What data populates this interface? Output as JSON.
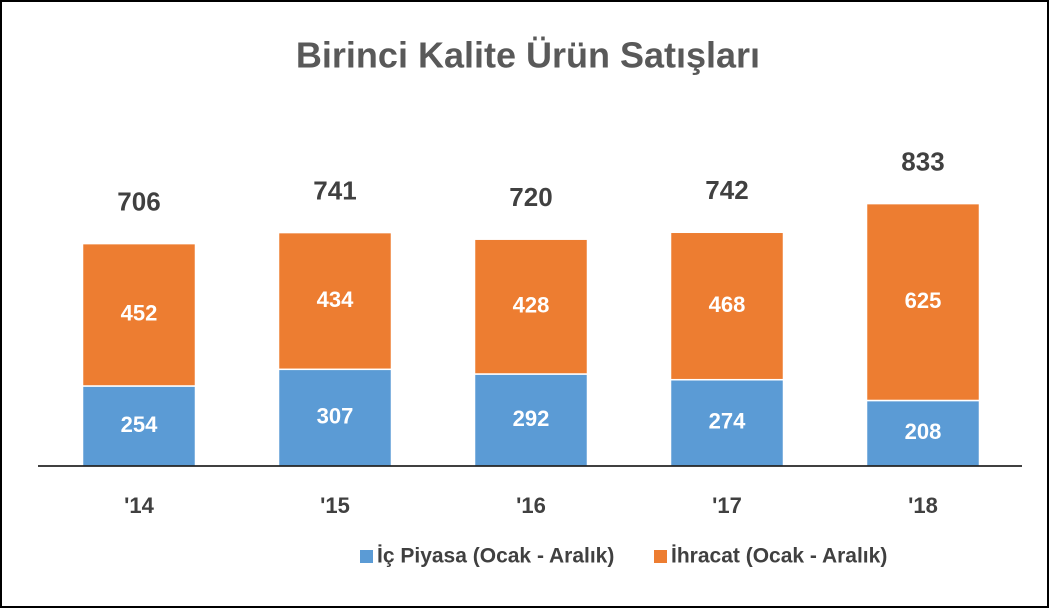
{
  "chart_data": {
    "type": "stacked_bar",
    "title": "Birinci Kalite Ürün Satışları",
    "categories": [
      "'14",
      "'15",
      "'16",
      "'17",
      "'18"
    ],
    "series": [
      {
        "name": "İç Piyasa (Ocak - Aralık)",
        "color": "#5b9bd5",
        "values": [
          254,
          307,
          292,
          274,
          208
        ]
      },
      {
        "name": "İhracat (Ocak - Aralık)",
        "color": "#ed7d31",
        "values": [
          452,
          434,
          428,
          468,
          625
        ]
      }
    ],
    "totals": [
      706,
      741,
      720,
      742,
      833
    ],
    "ylim": [
      0,
      1000
    ],
    "grid": false,
    "legend": "bottom"
  }
}
